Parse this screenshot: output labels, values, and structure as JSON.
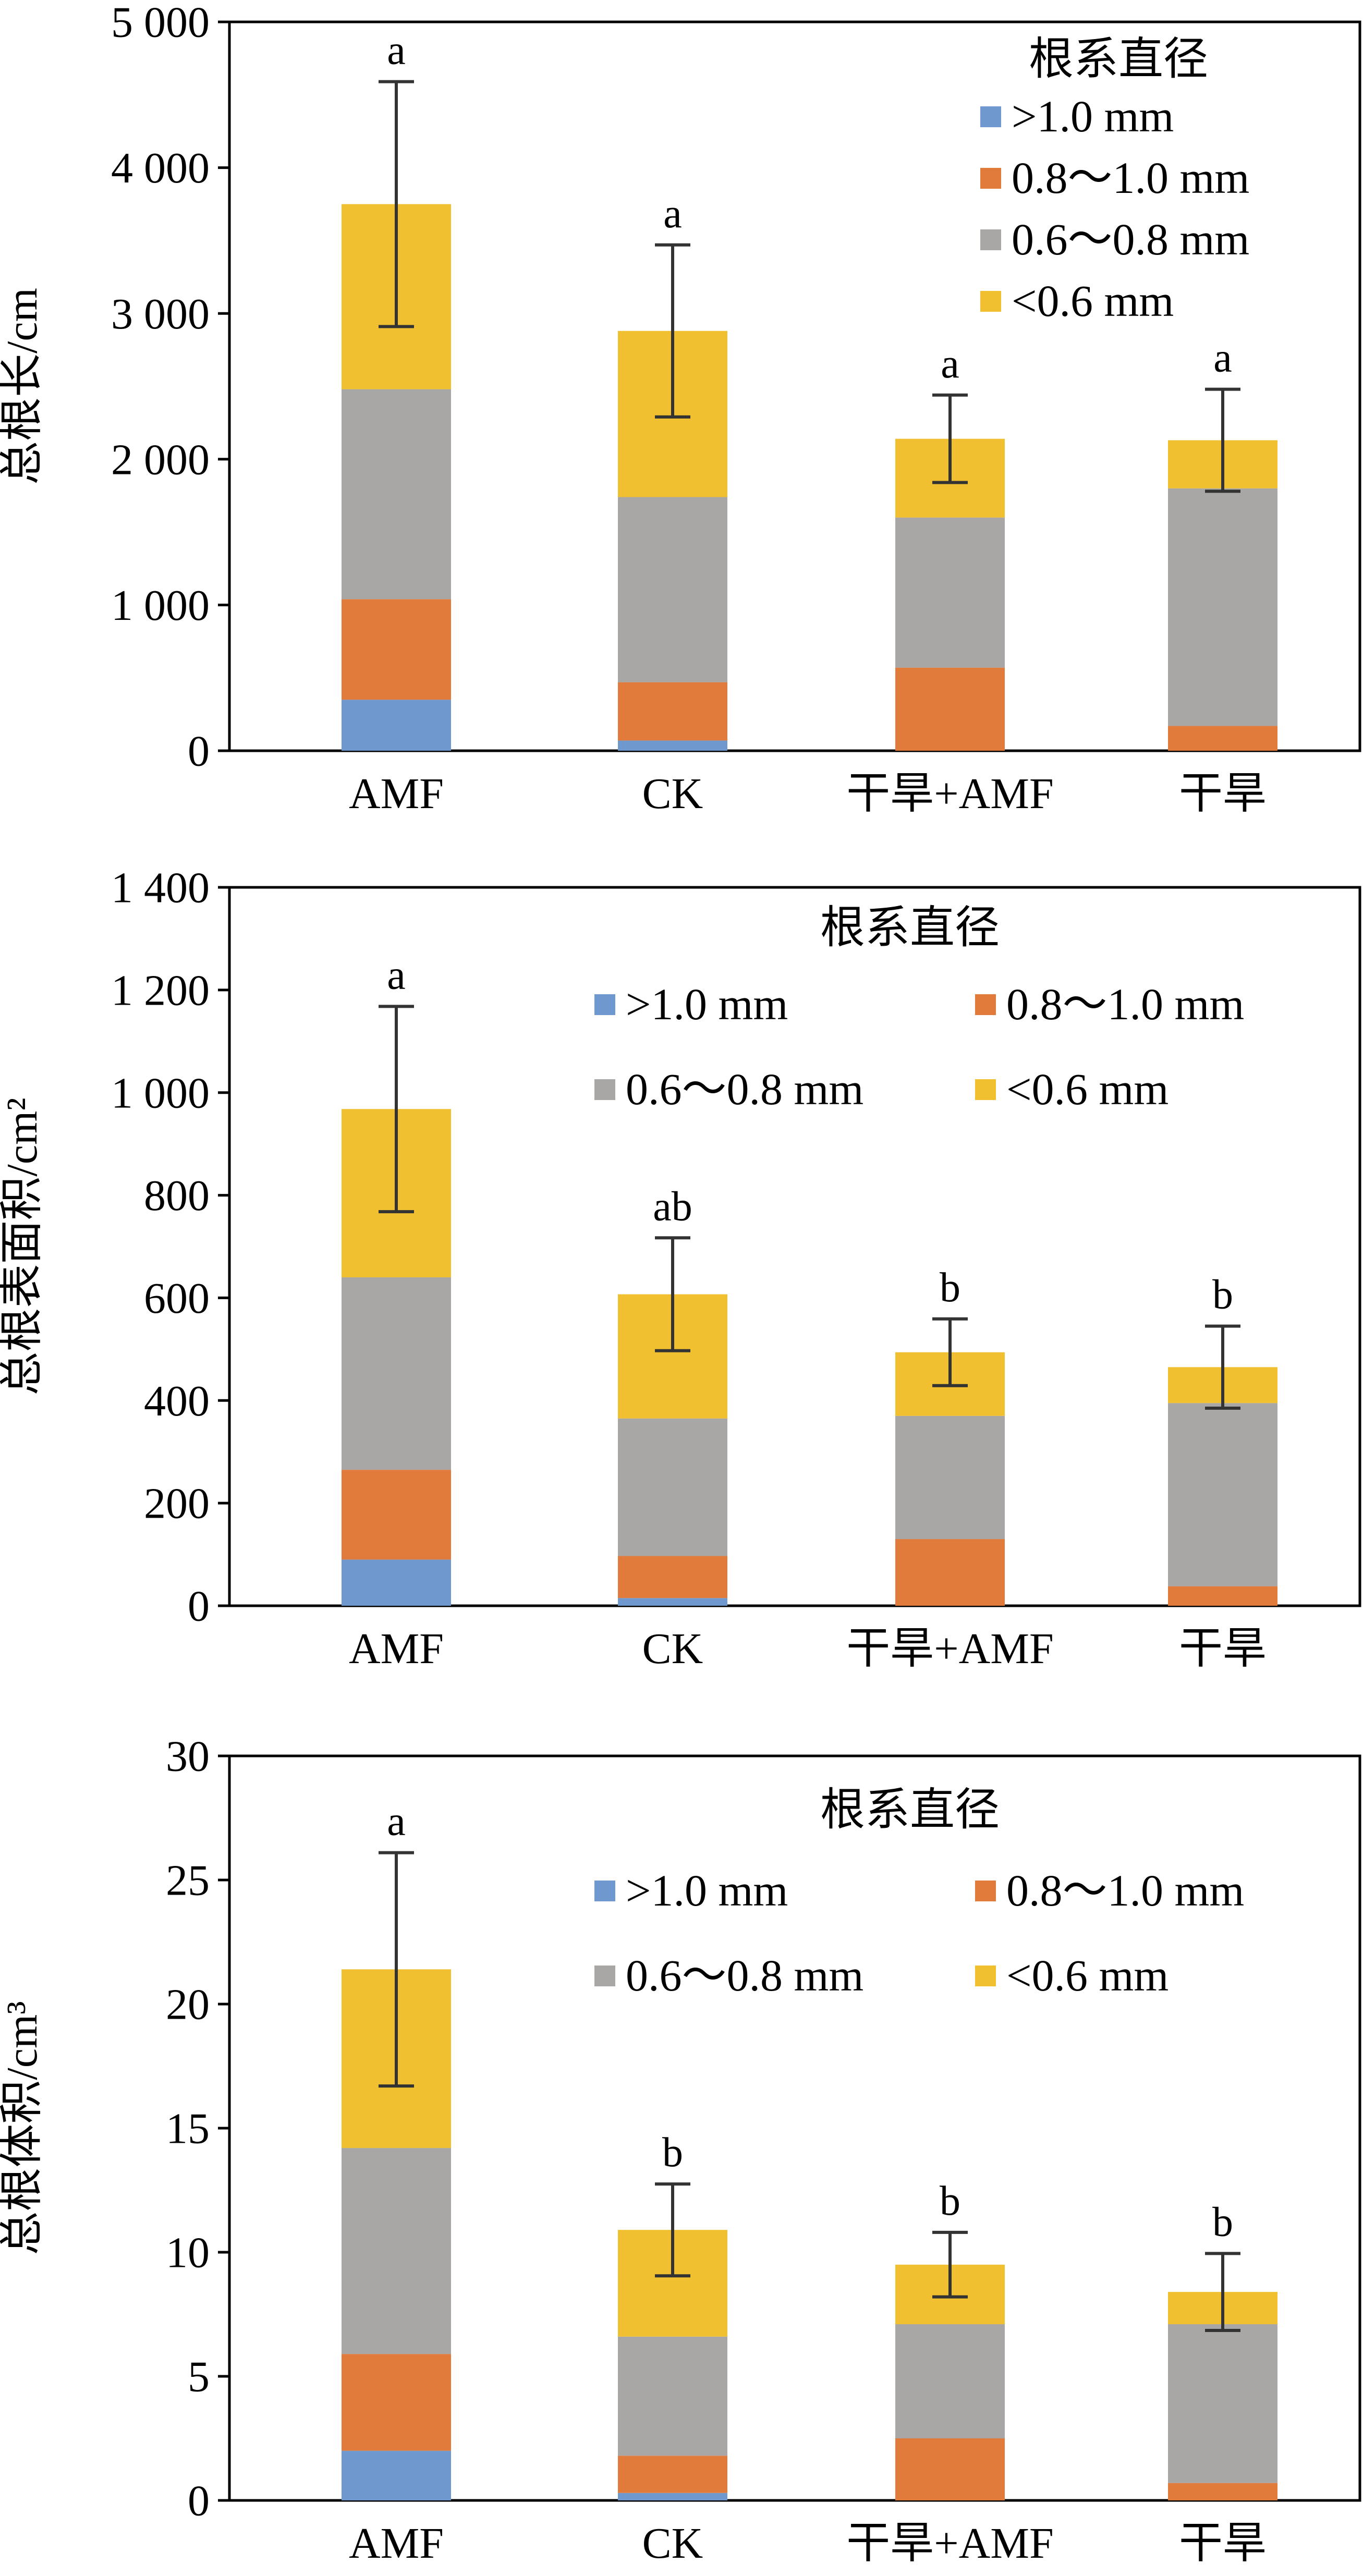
{
  "legend_title": "根系直径",
  "size_classes": [
    {
      "key": "gt1",
      "name": ">1.0 mm",
      "color": "#6f98cf"
    },
    {
      "key": "d08",
      "name": "0.8～1.0 mm",
      "color": "#e07b3c"
    },
    {
      "key": "d06",
      "name": "0.6～0.8 mm",
      "color": "#a9a6a6"
    },
    {
      "key": "lt06",
      "name": "<0.6 mm",
      "color": "#f0c030"
    }
  ],
  "chart_data": [
    {
      "type": "bar",
      "stacked": true,
      "ylabel": "总根长/cm",
      "ylim": [
        0,
        5000
      ],
      "yticks": [
        0,
        1000,
        2000,
        3000,
        4000,
        5000
      ],
      "ytick_labels": [
        "0",
        "1 000",
        "2 000",
        "3 000",
        "4 000",
        "5 000"
      ],
      "categories": [
        "AMF",
        "CK",
        "干旱+AMF",
        "干旱"
      ],
      "series": [
        {
          "name": ">1.0 mm",
          "values": [
            350,
            70,
            0,
            0
          ]
        },
        {
          "name": "0.8～1.0 mm",
          "values": [
            690,
            400,
            570,
            170
          ]
        },
        {
          "name": "0.6～0.8 mm",
          "values": [
            1440,
            1270,
            1030,
            1630
          ]
        },
        {
          "name": "<0.6 mm",
          "values": [
            1270,
            1140,
            540,
            330
          ]
        }
      ],
      "totals": [
        3750,
        2880,
        2140,
        2130
      ],
      "error": [
        840,
        590,
        300,
        350
      ],
      "annotations": [
        "a",
        "a",
        "a",
        "a"
      ],
      "legend": {
        "placement": "top-right",
        "layout": "1-column"
      }
    },
    {
      "type": "bar",
      "stacked": true,
      "ylabel": "总根表面积/cm²",
      "ylim": [
        0,
        1400
      ],
      "yticks": [
        0,
        200,
        400,
        600,
        800,
        1000,
        1200,
        1400
      ],
      "ytick_labels": [
        "0",
        "200",
        "400",
        "600",
        "800",
        "1 000",
        "1 200",
        "1 400"
      ],
      "categories": [
        "AMF",
        "CK",
        "干旱+AMF",
        "干旱"
      ],
      "series": [
        {
          "name": ">1.0 mm",
          "values": [
            90,
            15,
            0,
            0
          ]
        },
        {
          "name": "0.8～1.0 mm",
          "values": [
            175,
            82,
            130,
            38
          ]
        },
        {
          "name": "0.6～0.8 mm",
          "values": [
            375,
            268,
            240,
            357
          ]
        },
        {
          "name": "<0.6 mm",
          "values": [
            328,
            242,
            124,
            70
          ]
        }
      ],
      "totals": [
        968,
        607,
        494,
        465
      ],
      "error": [
        200,
        110,
        65,
        80
      ],
      "annotations": [
        "a",
        "ab",
        "b",
        "b"
      ],
      "legend": {
        "placement": "top",
        "layout": "2-column"
      }
    },
    {
      "type": "bar",
      "stacked": true,
      "ylabel": "总根体积/cm³",
      "ylim": [
        0,
        30
      ],
      "yticks": [
        0,
        5,
        10,
        15,
        20,
        25,
        30
      ],
      "ytick_labels": [
        "0",
        "5",
        "10",
        "15",
        "20",
        "25",
        "30"
      ],
      "categories": [
        "AMF",
        "CK",
        "干旱+AMF",
        "干旱"
      ],
      "series": [
        {
          "name": ">1.0 mm",
          "values": [
            2.0,
            0.3,
            0,
            0
          ]
        },
        {
          "name": "0.8～1.0 mm",
          "values": [
            3.9,
            1.5,
            2.5,
            0.7
          ]
        },
        {
          "name": "0.6～0.8 mm",
          "values": [
            8.3,
            4.8,
            4.6,
            6.4
          ]
        },
        {
          "name": "<0.6 mm",
          "values": [
            7.2,
            4.3,
            2.4,
            1.3
          ]
        }
      ],
      "totals": [
        21.4,
        10.9,
        9.5,
        8.4
      ],
      "error": [
        4.7,
        1.85,
        1.3,
        1.55
      ],
      "annotations": [
        "a",
        "b",
        "b",
        "b"
      ],
      "legend": {
        "placement": "top",
        "layout": "2-column"
      }
    }
  ]
}
